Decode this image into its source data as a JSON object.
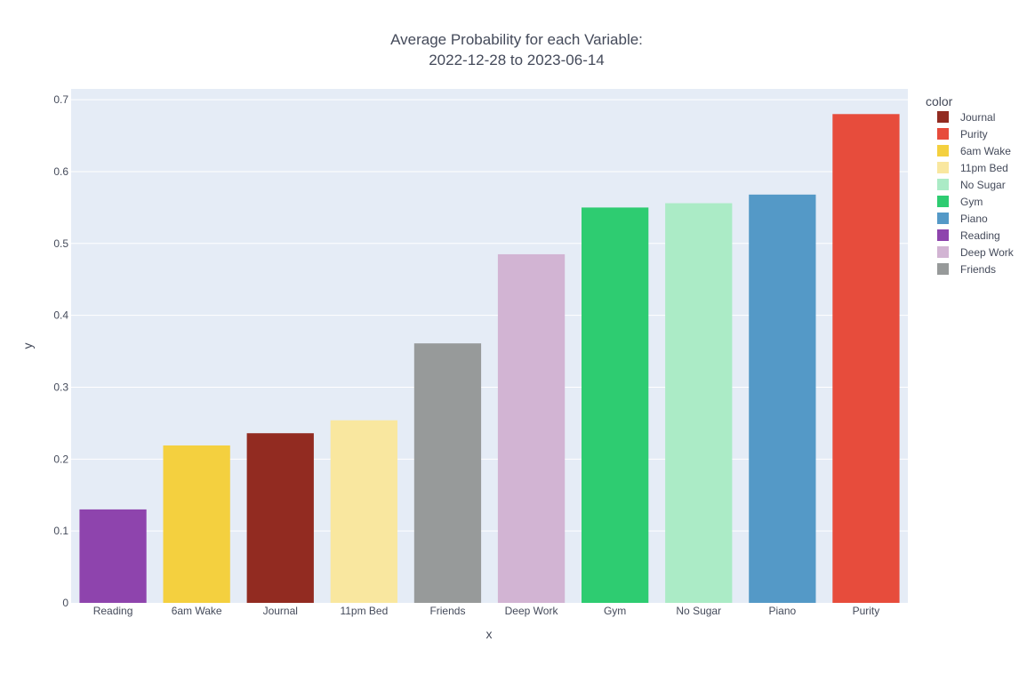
{
  "chart_data": {
    "type": "bar",
    "title_lines": [
      "Average Probability for each Variable:",
      "2022-12-28 to 2023-06-14"
    ],
    "xlabel": "x",
    "ylabel": "y",
    "ylim": [
      0,
      0.715
    ],
    "yticks": [
      0,
      0.1,
      0.2,
      0.3,
      0.4,
      0.5,
      0.6,
      0.7
    ],
    "ytick_labels": [
      "0",
      "0.1",
      "0.2",
      "0.3",
      "0.4",
      "0.5",
      "0.6",
      "0.7"
    ],
    "grid": true,
    "legend_position": "right",
    "legend_title": "color",
    "categories": [
      "Reading",
      "6am Wake",
      "Journal",
      "11pm Bed",
      "Friends",
      "Deep Work",
      "Gym",
      "No Sugar",
      "Piano",
      "Purity"
    ],
    "values": [
      0.13,
      0.219,
      0.236,
      0.254,
      0.361,
      0.485,
      0.55,
      0.556,
      0.568,
      0.68
    ],
    "colors": {
      "Journal": "#922b21",
      "Purity": "#e74c3c",
      "6am Wake": "#f4d03f",
      "11pm Bed": "#f9e79f",
      "No Sugar": "#abebc6",
      "Gym": "#2ecc71",
      "Piano": "#5499c7",
      "Reading": "#8e44ad",
      "Deep Work": "#d2b4d3",
      "Friends": "#979a9a"
    },
    "legend_order": [
      "Journal",
      "Purity",
      "6am Wake",
      "11pm Bed",
      "No Sugar",
      "Gym",
      "Piano",
      "Reading",
      "Deep Work",
      "Friends"
    ],
    "plot_background": "#e5ecf6"
  }
}
